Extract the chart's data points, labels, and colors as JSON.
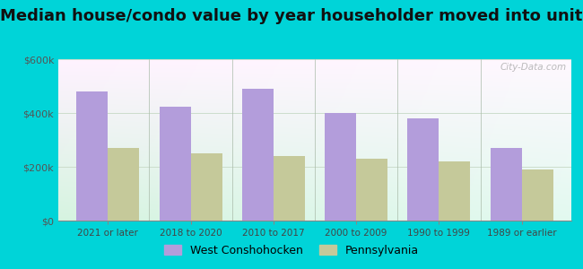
{
  "title": "Median house/condo value by year householder moved into unit",
  "categories": [
    "2021 or later",
    "2018 to 2020",
    "2010 to 2017",
    "2000 to 2009",
    "1990 to 1999",
    "1989 or earlier"
  ],
  "west_conshohocken": [
    480000,
    425000,
    490000,
    400000,
    380000,
    270000
  ],
  "pennsylvania": [
    270000,
    250000,
    240000,
    230000,
    220000,
    190000
  ],
  "bar_color_wc": "#b39ddb",
  "bar_color_pa": "#c5c99a",
  "background_outer": "#00d4d8",
  "ylabel_values": [
    "$0",
    "$200k",
    "$400k",
    "$600k"
  ],
  "yticks": [
    0,
    200000,
    400000,
    600000
  ],
  "ylim": [
    0,
    600000
  ],
  "legend_label_wc": "West Conshohocken",
  "legend_label_pa": "Pennsylvania",
  "title_fontsize": 13,
  "watermark": "City-Data.com"
}
